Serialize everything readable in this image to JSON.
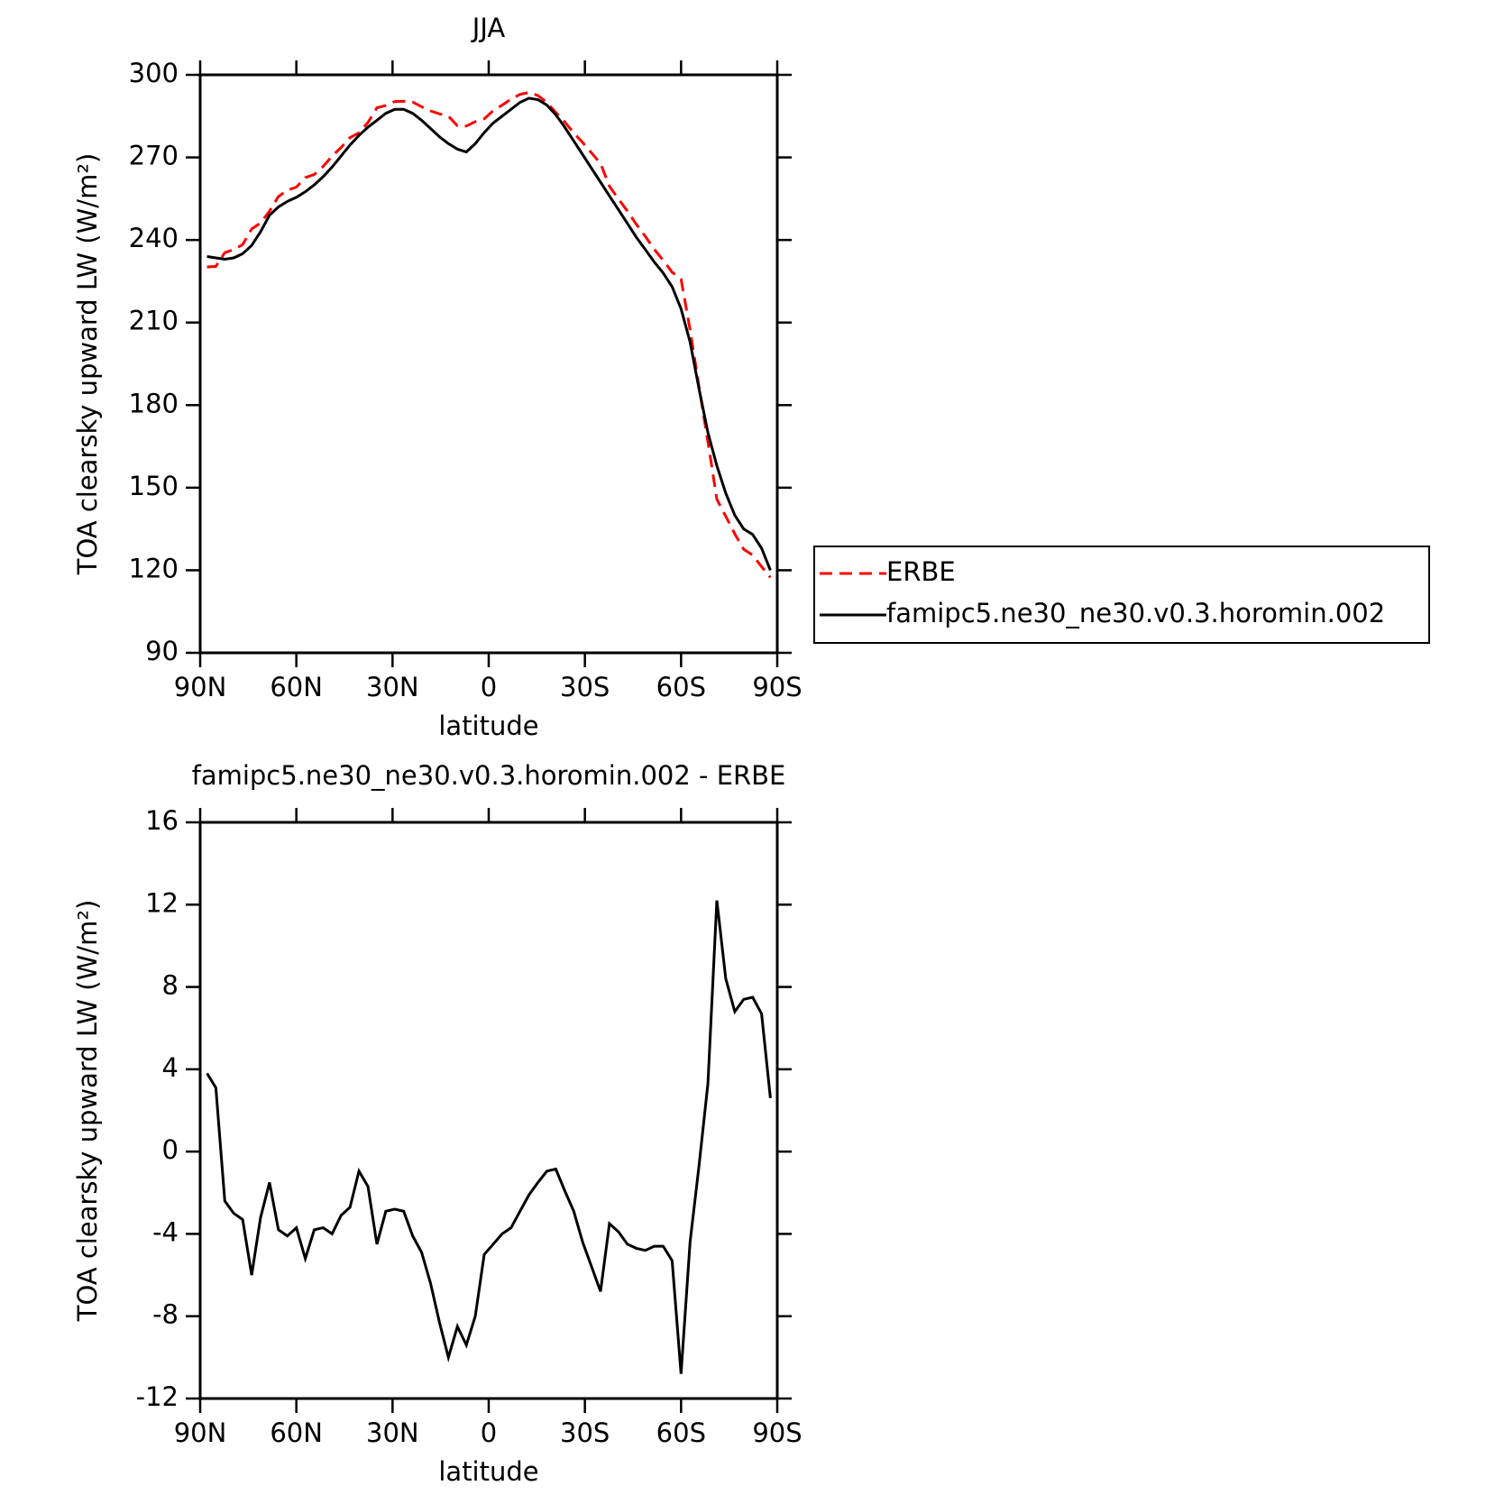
{
  "chart_data": [
    {
      "type": "line",
      "title": "JJA",
      "xlabel": "latitude",
      "ylabel": "TOA clearsky upward LW (W/m²)",
      "x": [
        87.86,
        85.1,
        82.31,
        79.53,
        76.74,
        73.95,
        71.16,
        68.37,
        65.58,
        62.79,
        60.0,
        57.21,
        54.42,
        51.63,
        48.84,
        46.04,
        43.25,
        40.46,
        37.67,
        34.88,
        32.09,
        29.3,
        26.51,
        23.72,
        20.93,
        18.14,
        15.35,
        12.56,
        9.77,
        6.98,
        4.19,
        1.4,
        -1.4,
        -4.19,
        -6.98,
        -9.77,
        -12.56,
        -15.35,
        -18.14,
        -20.93,
        -23.72,
        -26.51,
        -29.3,
        -32.09,
        -34.88,
        -37.67,
        -40.46,
        -43.25,
        -46.04,
        -48.84,
        -51.63,
        -54.42,
        -57.21,
        -60.0,
        -62.79,
        -65.58,
        -68.37,
        -71.16,
        -73.95,
        -76.74,
        -79.53,
        -82.31,
        -85.1,
        -87.86
      ],
      "xlim": [
        90,
        -90
      ],
      "xticks": [
        {
          "value": 90,
          "label": "90N"
        },
        {
          "value": 60,
          "label": "60N"
        },
        {
          "value": 30,
          "label": "30N"
        },
        0,
        {
          "value": -30,
          "label": "30S"
        },
        {
          "value": -60,
          "label": "60S"
        },
        {
          "value": -90,
          "label": "90S"
        }
      ],
      "ylim": [
        90,
        300
      ],
      "yticks": [
        90,
        120,
        150,
        180,
        210,
        240,
        270,
        300
      ],
      "legend": "outside-right",
      "series": [
        {
          "name": "ERBE",
          "color": "#ff0000",
          "dash": true,
          "values": [
            230.2,
            230.4,
            235.4,
            236.5,
            238.3,
            244,
            246.2,
            250.5,
            255.8,
            258.1,
            259.2,
            262.7,
            263.8,
            266.7,
            270.5,
            273.6,
            277.2,
            278.95,
            282.7,
            288,
            288.9,
            290.3,
            290.4,
            290.1,
            288.4,
            286.9,
            285.8,
            285,
            281.5,
            281.4,
            283,
            284,
            287,
            289,
            291.2,
            292.9,
            293.6,
            292.5,
            289.95,
            286.35,
            282.9,
            278.9,
            275.4,
            271.6,
            267.8,
            259.5,
            254.9,
            250.5,
            245.7,
            241.3,
            236.6,
            232.6,
            228.3,
            225.8,
            207.4,
            186.7,
            166.7,
            145.8,
            139.6,
            133.2,
            127.6,
            125.5,
            121.3,
            117.4
          ]
        },
        {
          "name": "famipc5.ne30_ne30.v0.3.horomin.002",
          "color": "#000000",
          "dash": false,
          "values": [
            234,
            233.5,
            233,
            233.5,
            235,
            238,
            243,
            249,
            252,
            254,
            255.5,
            257.5,
            260,
            263,
            266.5,
            270.5,
            274.5,
            278,
            281,
            283.5,
            286,
            287.5,
            287.5,
            286,
            283.5,
            280.5,
            277.5,
            275,
            273,
            272,
            275,
            279,
            282.5,
            285,
            287.5,
            290,
            291.5,
            291,
            289,
            285.5,
            281,
            276,
            271,
            266,
            261,
            256,
            251,
            246,
            241,
            236.5,
            232,
            228,
            223,
            215,
            203,
            186,
            170,
            158,
            148,
            140,
            135,
            133,
            128,
            120
          ]
        }
      ]
    },
    {
      "type": "line",
      "title": "famipc5.ne30_ne30.v0.3.horomin.002 - ERBE",
      "xlabel": "latitude",
      "ylabel": "TOA clearsky upward LW (W/m²)",
      "x": [
        87.86,
        85.1,
        82.31,
        79.53,
        76.74,
        73.95,
        71.16,
        68.37,
        65.58,
        62.79,
        60.0,
        57.21,
        54.42,
        51.63,
        48.84,
        46.04,
        43.25,
        40.46,
        37.67,
        34.88,
        32.09,
        29.3,
        26.51,
        23.72,
        20.93,
        18.14,
        15.35,
        12.56,
        9.77,
        6.98,
        4.19,
        1.4,
        -1.4,
        -4.19,
        -6.98,
        -9.77,
        -12.56,
        -15.35,
        -18.14,
        -20.93,
        -23.72,
        -26.51,
        -29.3,
        -32.09,
        -34.88,
        -37.67,
        -40.46,
        -43.25,
        -46.04,
        -48.84,
        -51.63,
        -54.42,
        -57.21,
        -60.0,
        -62.79,
        -65.58,
        -68.37,
        -71.16,
        -73.95,
        -76.74,
        -79.53,
        -82.31,
        -85.1,
        -87.86
      ],
      "xlim": [
        90,
        -90
      ],
      "xticks": [
        {
          "value": 90,
          "label": "90N"
        },
        {
          "value": 60,
          "label": "60N"
        },
        {
          "value": 30,
          "label": "30N"
        },
        0,
        {
          "value": -30,
          "label": "30S"
        },
        {
          "value": -60,
          "label": "60S"
        },
        {
          "value": -90,
          "label": "90S"
        }
      ],
      "ylim": [
        -12,
        16
      ],
      "yticks": [
        -12,
        -8,
        -4,
        0,
        4,
        8,
        12,
        16
      ],
      "series": [
        {
          "color": "#000000",
          "dash": false,
          "values": [
            3.8,
            3.1,
            -2.4,
            -3.0,
            -3.3,
            -6.0,
            -3.2,
            -1.5,
            -3.8,
            -4.1,
            -3.7,
            -5.2,
            -3.8,
            -3.7,
            -4.0,
            -3.1,
            -2.7,
            -0.95,
            -1.7,
            -4.5,
            -2.9,
            -2.8,
            -2.9,
            -4.1,
            -4.9,
            -6.4,
            -8.3,
            -10.0,
            -8.5,
            -9.4,
            -8.0,
            -5.0,
            -4.5,
            -4.0,
            -3.7,
            -2.9,
            -2.1,
            -1.5,
            -0.95,
            -0.85,
            -1.9,
            -2.9,
            -4.4,
            -5.6,
            -6.8,
            -3.5,
            -3.9,
            -4.5,
            -4.7,
            -4.8,
            -4.6,
            -4.6,
            -5.3,
            -10.8,
            -4.4,
            -0.7,
            3.3,
            12.2,
            8.4,
            6.8,
            7.4,
            7.5,
            6.7,
            2.6
          ]
        }
      ]
    }
  ]
}
